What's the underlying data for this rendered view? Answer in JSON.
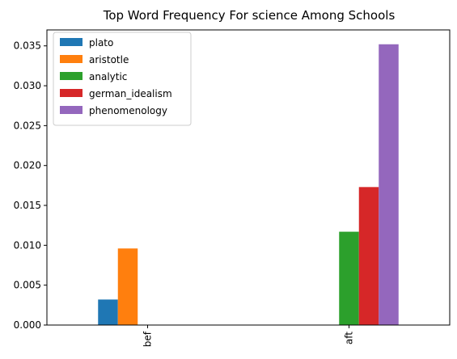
{
  "chart_data": {
    "type": "bar",
    "title": "Top Word Frequency For science Among Schools",
    "xlabel": "",
    "ylabel": "",
    "categories": [
      "bef",
      "aft"
    ],
    "series": [
      {
        "name": "plato",
        "color": "#1f77b4",
        "values": [
          0.0032,
          0
        ]
      },
      {
        "name": "aristotle",
        "color": "#ff7f0e",
        "values": [
          0.0096,
          0
        ]
      },
      {
        "name": "analytic",
        "color": "#2ca02c",
        "values": [
          0,
          0.0117
        ]
      },
      {
        "name": "german_idealism",
        "color": "#d62728",
        "values": [
          0,
          0.0173
        ]
      },
      {
        "name": "phenomenology",
        "color": "#9467bd",
        "values": [
          0,
          0.0352
        ]
      }
    ],
    "ylim": [
      0,
      0.037
    ],
    "yticks": [
      "0.000",
      "0.005",
      "0.010",
      "0.015",
      "0.020",
      "0.025",
      "0.030",
      "0.035"
    ],
    "grid": false,
    "legend_position": "top-left"
  }
}
